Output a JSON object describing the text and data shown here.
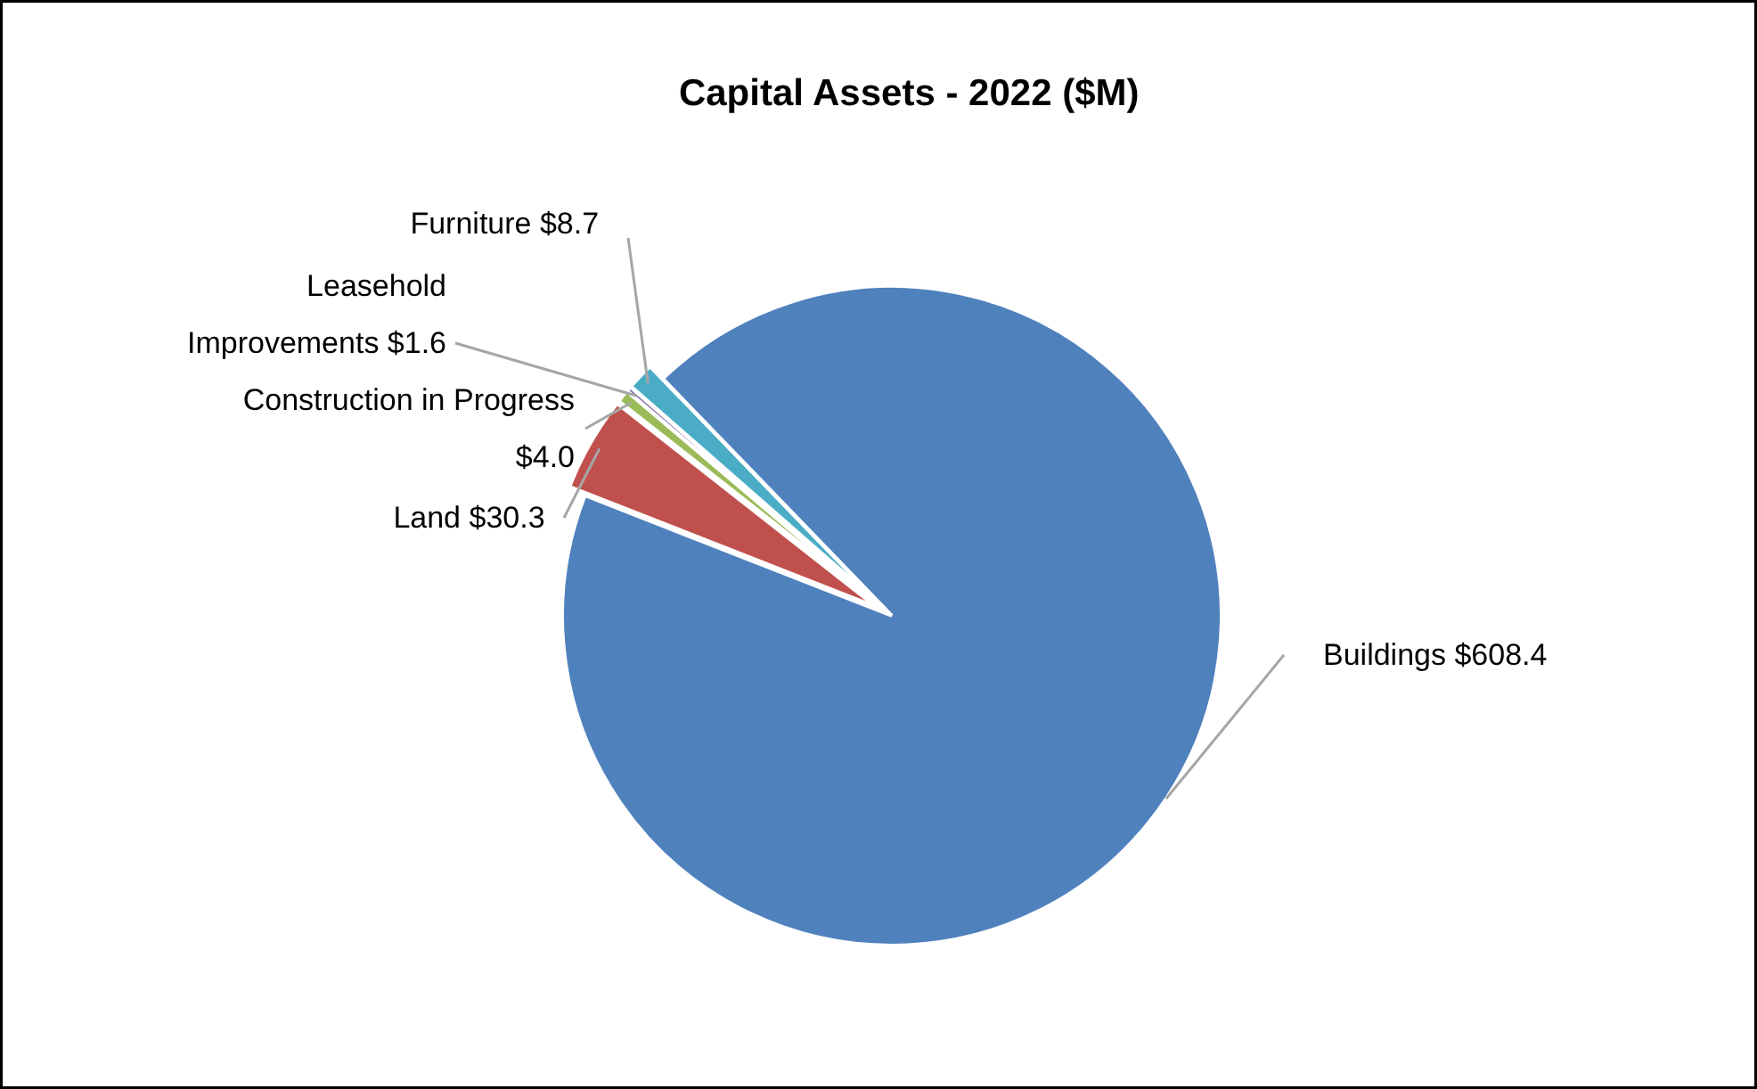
{
  "chart_data": {
    "type": "pie",
    "title": "Capital Assets - 2022 ($M)",
    "categories": [
      "Buildings",
      "Land",
      "Construction in Progress",
      "Leasehold Improvements",
      "Furniture"
    ],
    "values": [
      608.4,
      30.3,
      4.0,
      1.6,
      8.7
    ],
    "value_labels": [
      "$608.4",
      "$30.3",
      "$4.0",
      "$1.6",
      "$8.7"
    ],
    "colors": [
      "#4f81bd",
      "#c0504d",
      "#9bbb59",
      "#8064a2",
      "#4bacc6"
    ]
  }
}
